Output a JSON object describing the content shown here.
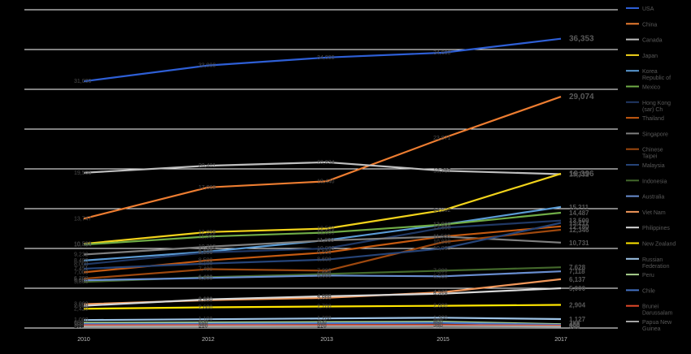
{
  "chart_data": {
    "type": "line",
    "x": [
      "2010",
      "2012",
      "2013",
      "2015",
      "2017"
    ],
    "ylim": [
      0,
      40000
    ],
    "grid": true,
    "legend_position": "right",
    "series": [
      {
        "name": "USA",
        "color": "#2e5fd6",
        "values": [
          31000,
          33000,
          34000,
          34600,
          36353
        ],
        "labels": [
          "31,000",
          "33,000",
          "34,000",
          "34,600",
          "36,353"
        ],
        "end_big": true
      },
      {
        "name": "China",
        "color": "#ed7d31",
        "values": [
          13747,
          17669,
          18440,
          23871,
          29074
        ],
        "labels": [
          "13,747",
          "17,669",
          "18,440",
          "23,871",
          "29,074"
        ],
        "end_big": true
      },
      {
        "name": "Canada",
        "color": "#bfbfbf",
        "values": [
          19506,
          20401,
          20834,
          19767,
          19332
        ],
        "labels": [
          "19,506",
          "20,401",
          "20,834",
          "19,767",
          "19,332"
        ]
      },
      {
        "name": "Japan",
        "color": "#f2d31b",
        "values": [
          10580,
          12058,
          12500,
          14802,
          19396
        ],
        "labels": [
          "10,580",
          "12,058",
          "12,500",
          "14,802",
          "19,396"
        ],
        "end_big": true
      },
      {
        "name": "Korea Republic of",
        "color": "#5b9bd5",
        "values": [
          8480,
          9600,
          11039,
          13000,
          15211
        ],
        "labels": [
          "8,480",
          "9,600",
          "11,039",
          "13,000",
          "15,211"
        ]
      },
      {
        "name": "Mexico",
        "color": "#70ad47",
        "values": [
          10484,
          11500,
          12000,
          13000,
          14487
        ],
        "labels": [
          "10,484",
          "11,500",
          "12,000",
          "13,000",
          "14,487"
        ]
      },
      {
        "name": "Hong Kong (sar) Ch",
        "color": "#203864",
        "values": [
          8000,
          9500,
          10000,
          12600,
          13500
        ],
        "labels": [
          "8,000",
          "9,500",
          "10,000",
          "12,600",
          "13,500"
        ]
      },
      {
        "name": "Thailand",
        "color": "#c55a11",
        "values": [
          7000,
          8500,
          9500,
          11500,
          12780
        ],
        "labels": [
          "7,000",
          "8,500",
          "9,500",
          "11,500",
          "12,780"
        ]
      },
      {
        "name": "Singapore",
        "color": "#7f7f7f",
        "values": [
          9232,
          10212,
          11000,
          11500,
          10731
        ],
        "labels": [
          "9,232",
          "10,212",
          "11,000",
          "11,500",
          "10,731"
        ]
      },
      {
        "name": "Chinese Taipei",
        "color": "#9e480e",
        "values": [
          6200,
          7400,
          7200,
          10800,
          12346
        ],
        "labels": [
          "6,200",
          "7,400",
          "7,200",
          "10,800",
          "12,346"
        ]
      },
      {
        "name": "Malaysia",
        "color": "#264478",
        "values": [
          7451,
          8100,
          8600,
          10000,
          13212
        ],
        "labels": [
          "7,451",
          "8,100",
          "8,600",
          "10,000",
          "13,212"
        ]
      },
      {
        "name": "Indonesia",
        "color": "#43682b",
        "values": [
          5800,
          6400,
          6800,
          7200,
          7628
        ],
        "labels": [
          "5,800",
          "6,400",
          "6,800",
          "7,200",
          "7,628"
        ]
      },
      {
        "name": "Australia",
        "color": "#698ed0",
        "values": [
          6000,
          6300,
          6600,
          6500,
          7118
        ],
        "labels": [
          "6,000",
          "6,300",
          "6,600",
          "6,500",
          "7,118"
        ]
      },
      {
        "name": "Viet Nam",
        "color": "#f1975a",
        "values": [
          3000,
          3500,
          3800,
          4500,
          6137
        ],
        "labels": [
          "3,000",
          "3,500",
          "3,800",
          "4,500",
          "6,137"
        ]
      },
      {
        "name": "Philippines",
        "color": "#d9d9d9",
        "values": [
          2800,
          3600,
          4000,
          4316,
          5000
        ],
        "labels": [
          "2,800",
          "3,600",
          "4,000",
          "4,316",
          "5,000"
        ]
      },
      {
        "name": "New Zealand",
        "color": "#ffe600",
        "values": [
          2420,
          2600,
          2700,
          2800,
          2904
        ],
        "labels": [
          "2,420",
          "2,600",
          "2,700",
          "2,800",
          "2,904"
        ]
      },
      {
        "name": "Russian Federation",
        "color": "#9dc3e6",
        "values": [
          1000,
          1100,
          1200,
          1300,
          1127
        ],
        "labels": [
          "1,000",
          "1,100",
          "1,200",
          "1,300",
          "1,127"
        ]
      },
      {
        "name": "Peru",
        "color": "#a9d18e",
        "values": [
          650,
          700,
          750,
          800,
          488
        ],
        "labels": [
          "650",
          "700",
          "750",
          "800",
          "488"
        ]
      },
      {
        "name": "Chile",
        "color": "#4472c4",
        "values": [
          500,
          550,
          600,
          650,
          400
        ],
        "labels": [
          "500",
          "550",
          "600",
          "650",
          "400"
        ]
      },
      {
        "name": "Brunei Darussalam",
        "color": "#e2492a",
        "values": [
          350,
          360,
          370,
          380,
          300
        ],
        "labels": [
          "350",
          "360",
          "370",
          "380",
          "300"
        ]
      },
      {
        "name": "Papua New Guinea",
        "color": "#a5a5a5",
        "values": [
          200,
          210,
          220,
          230,
          190
        ],
        "labels": [
          "200",
          "210",
          "220",
          "230",
          "190"
        ]
      }
    ]
  }
}
